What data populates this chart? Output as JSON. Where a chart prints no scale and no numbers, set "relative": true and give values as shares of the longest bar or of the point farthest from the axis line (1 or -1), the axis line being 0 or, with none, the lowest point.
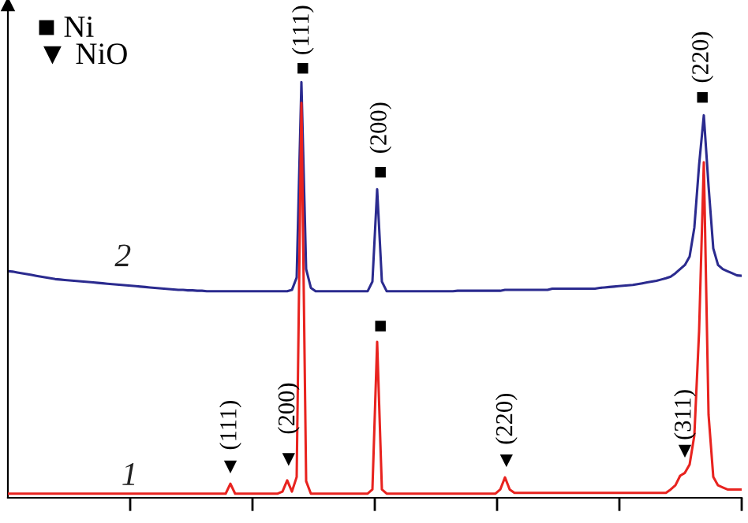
{
  "chart_data": {
    "type": "line",
    "relative": true,
    "legend": false,
    "grid": false,
    "marker": "none",
    "line_style": "solid",
    "categories": [
      null,
      null,
      null,
      null,
      null,
      null,
      null,
      null,
      null,
      null,
      null,
      null,
      null,
      null,
      null,
      null,
      null,
      null,
      null,
      null,
      null,
      null,
      null,
      null,
      null,
      null,
      null,
      null,
      null,
      null,
      null,
      null,
      null,
      null,
      null,
      null,
      null,
      null,
      null,
      null,
      null,
      null,
      null,
      null,
      null,
      null,
      null,
      null,
      null,
      null,
      null,
      null,
      null,
      null,
      null,
      null,
      null,
      null,
      null,
      null,
      null,
      null,
      null,
      null,
      null,
      null,
      null,
      null,
      null,
      null,
      null,
      null,
      null,
      null,
      null,
      null,
      null,
      null,
      null,
      null,
      null,
      null,
      null,
      null,
      null,
      null,
      null,
      null,
      null,
      null,
      null,
      null,
      null,
      null,
      null,
      null,
      null,
      null,
      null,
      null,
      null,
      null,
      null,
      null,
      null,
      null,
      null,
      null,
      null,
      null,
      null,
      null,
      null,
      null,
      null,
      null,
      null,
      null,
      null,
      null,
      null,
      null,
      null,
      null,
      null,
      null,
      null,
      null,
      null,
      null,
      null,
      null,
      null,
      null,
      null,
      null,
      null,
      null,
      null,
      null,
      null,
      null,
      null,
      null,
      null,
      null,
      null,
      null,
      null,
      null,
      null,
      null,
      null,
      null,
      null,
      null
    ],
    "series": [
      {
        "name": "1",
        "color": "#e8231f",
        "values": [
          0.01,
          0.01,
          0.01,
          0.01,
          0.01,
          0.01,
          0.01,
          0.01,
          0.01,
          0.01,
          0.01,
          0.01,
          0.01,
          0.01,
          0.01,
          0.01,
          0.01,
          0.01,
          0.01,
          0.01,
          0.01,
          0.01,
          0.01,
          0.01,
          0.01,
          0.01,
          0.01,
          0.01,
          0.01,
          0.01,
          0.01,
          0.01,
          0.01,
          0.01,
          0.01,
          0.01,
          0.01,
          0.01,
          0.01,
          0.01,
          0.01,
          0.01,
          0.01,
          0.01,
          0.01,
          0.01,
          0.01,
          0.034,
          0.01,
          0.01,
          0.01,
          0.01,
          0.01,
          0.01,
          0.01,
          0.01,
          0.01,
          0.01,
          0.015,
          0.042,
          0.015,
          0.05,
          0.95,
          0.04,
          0.01,
          0.01,
          0.01,
          0.01,
          0.01,
          0.01,
          0.01,
          0.01,
          0.01,
          0.01,
          0.01,
          0.01,
          0.01,
          0.02,
          0.375,
          0.02,
          0.01,
          0.01,
          0.01,
          0.01,
          0.01,
          0.01,
          0.01,
          0.01,
          0.01,
          0.01,
          0.01,
          0.01,
          0.01,
          0.01,
          0.01,
          0.01,
          0.01,
          0.01,
          0.01,
          0.01,
          0.01,
          0.01,
          0.01,
          0.01,
          0.02,
          0.049,
          0.02,
          0.012,
          0.012,
          0.012,
          0.012,
          0.012,
          0.012,
          0.012,
          0.012,
          0.012,
          0.012,
          0.012,
          0.012,
          0.012,
          0.012,
          0.012,
          0.012,
          0.012,
          0.012,
          0.012,
          0.012,
          0.012,
          0.012,
          0.012,
          0.012,
          0.012,
          0.012,
          0.012,
          0.012,
          0.012,
          0.012,
          0.012,
          0.012,
          0.012,
          0.02,
          0.03,
          0.053,
          0.06,
          0.08,
          0.15,
          0.4,
          0.807,
          0.2,
          0.05,
          0.03,
          0.025,
          0.02,
          0.02,
          0.02,
          0.02
        ]
      },
      {
        "name": "2",
        "color": "#2b2b8f",
        "values": [
          0.545,
          0.544,
          0.542,
          0.54,
          0.538,
          0.536,
          0.534,
          0.532,
          0.53,
          0.528,
          0.526,
          0.525,
          0.524,
          0.523,
          0.522,
          0.521,
          0.52,
          0.519,
          0.518,
          0.517,
          0.516,
          0.515,
          0.514,
          0.513,
          0.512,
          0.511,
          0.51,
          0.509,
          0.508,
          0.507,
          0.506,
          0.505,
          0.504,
          0.503,
          0.502,
          0.501,
          0.5,
          0.5,
          0.499,
          0.499,
          0.498,
          0.498,
          0.497,
          0.497,
          0.497,
          0.497,
          0.497,
          0.497,
          0.497,
          0.497,
          0.497,
          0.497,
          0.497,
          0.497,
          0.497,
          0.497,
          0.497,
          0.497,
          0.497,
          0.497,
          0.5,
          0.53,
          1.0,
          0.55,
          0.505,
          0.497,
          0.497,
          0.497,
          0.497,
          0.497,
          0.497,
          0.497,
          0.497,
          0.497,
          0.497,
          0.497,
          0.497,
          0.52,
          0.742,
          0.52,
          0.497,
          0.497,
          0.497,
          0.497,
          0.497,
          0.497,
          0.497,
          0.497,
          0.497,
          0.497,
          0.497,
          0.497,
          0.497,
          0.497,
          0.497,
          0.498,
          0.498,
          0.498,
          0.498,
          0.498,
          0.498,
          0.498,
          0.498,
          0.498,
          0.498,
          0.5,
          0.5,
          0.5,
          0.5,
          0.5,
          0.5,
          0.5,
          0.5,
          0.5,
          0.5,
          0.503,
          0.503,
          0.503,
          0.503,
          0.503,
          0.503,
          0.503,
          0.503,
          0.503,
          0.503,
          0.505,
          0.506,
          0.507,
          0.508,
          0.509,
          0.51,
          0.511,
          0.512,
          0.514,
          0.516,
          0.518,
          0.52,
          0.522,
          0.525,
          0.528,
          0.532,
          0.54,
          0.55,
          0.56,
          0.58,
          0.65,
          0.8,
          0.92,
          0.75,
          0.6,
          0.56,
          0.55,
          0.545,
          0.54,
          0.535,
          0.534
        ]
      }
    ],
    "annotations": [
      "■ Ni",
      "▼ NiO",
      "■",
      "(111)",
      "■",
      "(200)",
      "■",
      "(220)",
      "■",
      "▼",
      "(111)",
      "▼",
      "(200)",
      "▼",
      "(220)",
      "▼",
      "(311)"
    ]
  }
}
